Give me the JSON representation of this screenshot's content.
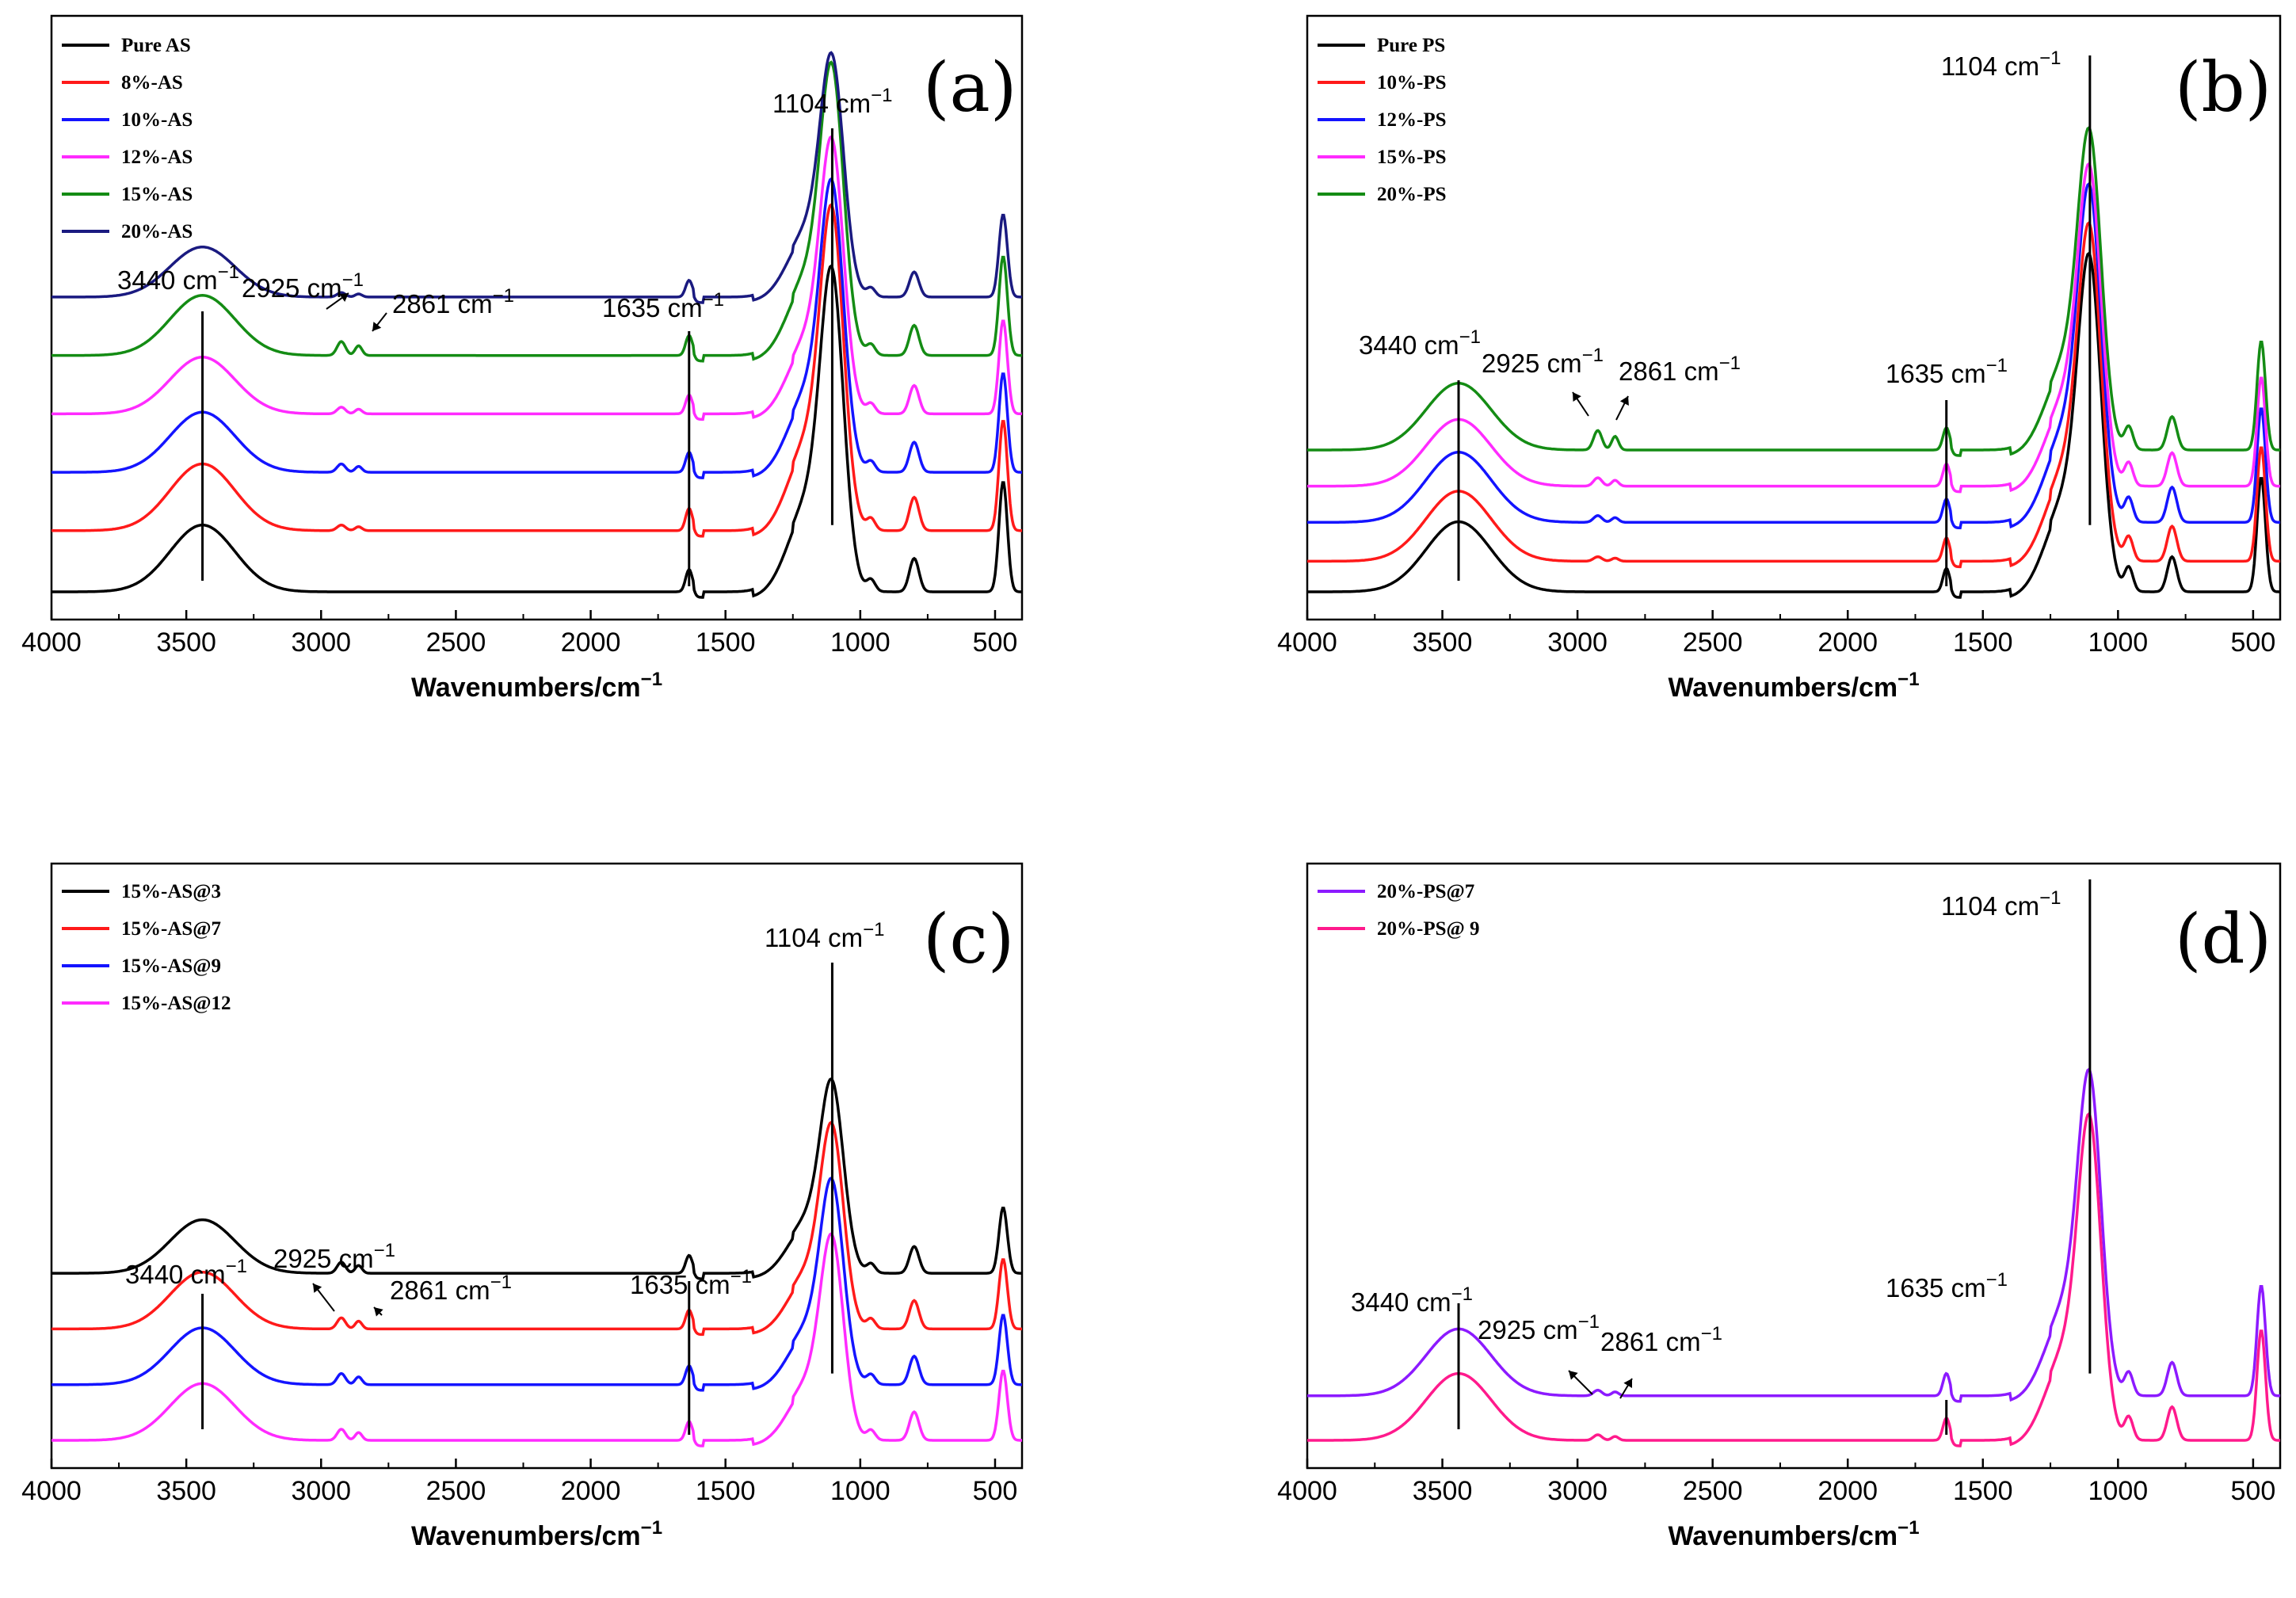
{
  "colors": {
    "black": "#000000",
    "red": "#ff1a1a",
    "blue": "#1414ff",
    "magenta": "#ff2bff",
    "green": "#148c14",
    "navy": "#1a1a80",
    "purple": "#8c1aff",
    "pink": "#ff1a8c"
  },
  "chart_data": [
    {
      "type": "line",
      "panel_label": "(a)",
      "xlabel": "Wavenumbers/cm",
      "xlabel_sup": "−1",
      "xlim": [
        4000,
        400
      ],
      "xticks": [
        4000,
        3500,
        3000,
        2500,
        2000,
        1500,
        1000,
        500
      ],
      "ylim": [
        0,
        100
      ],
      "series": [
        {
          "name": "Pure AS",
          "color": "#000000",
          "offset": 0,
          "scale": 1.0,
          "hcpk": 0.0
        },
        {
          "name": "8%-AS",
          "color": "#ff1a1a",
          "offset": 11,
          "scale": 1.0,
          "hcpk": 1.0
        },
        {
          "name": "10%-AS",
          "color": "#1414ff",
          "offset": 21.5,
          "scale": 0.9,
          "hcpk": 1.5
        },
        {
          "name": "12%-AS",
          "color": "#ff2bff",
          "offset": 32,
          "scale": 0.85,
          "hcpk": 1.2
        },
        {
          "name": "15%-AS",
          "color": "#148c14",
          "offset": 42.5,
          "scale": 0.9,
          "hcpk": 2.5
        },
        {
          "name": "20%-AS",
          "color": "#1a1a80",
          "offset": 53,
          "scale": 0.75,
          "hcpk": 0.8
        }
      ],
      "annotations": [
        {
          "label": "1104 cm",
          "sup": "−1"
        },
        {
          "label": "3440 cm",
          "sup": "−1"
        },
        {
          "label": "2925 cm",
          "sup": "−1"
        },
        {
          "label": "2861 cm",
          "sup": "−1"
        },
        {
          "label": "1635 cm",
          "sup": "−1"
        }
      ]
    },
    {
      "type": "line",
      "panel_label": "(b)",
      "xlabel": "Wavenumbers/cm",
      "xlabel_sup": "−1",
      "xlim": [
        4000,
        400
      ],
      "xticks": [
        4000,
        3500,
        3000,
        2500,
        2000,
        1500,
        1000,
        500
      ],
      "ylim": [
        0,
        100
      ],
      "series": [
        {
          "name": "Pure PS",
          "color": "#000000",
          "offset": 0,
          "scale": 1.05,
          "hcpk": 0.0
        },
        {
          "name": "10%-PS",
          "color": "#ff1a1a",
          "offset": 5.5,
          "scale": 1.05,
          "hcpk": 0.8
        },
        {
          "name": "12%-PS",
          "color": "#1414ff",
          "offset": 12.5,
          "scale": 1.05,
          "hcpk": 1.2
        },
        {
          "name": "15%-PS",
          "color": "#ff2bff",
          "offset": 19,
          "scale": 1.0,
          "hcpk": 1.5
        },
        {
          "name": "20%-PS",
          "color": "#148c14",
          "offset": 25.5,
          "scale": 1.0,
          "hcpk": 3.5
        }
      ],
      "annotations": [
        {
          "label": "1104 cm",
          "sup": "−1"
        },
        {
          "label": "3440 cm",
          "sup": "−1"
        },
        {
          "label": "2925 cm",
          "sup": "−1"
        },
        {
          "label": "2861 cm",
          "sup": "−1"
        },
        {
          "label": "1635 cm",
          "sup": "−1"
        }
      ]
    },
    {
      "type": "line",
      "panel_label": "(c)",
      "xlabel": "Wavenumbers/cm",
      "xlabel_sup": "−1",
      "xlim": [
        4000,
        400
      ],
      "xticks": [
        4000,
        3500,
        3000,
        2500,
        2000,
        1500,
        1000,
        500
      ],
      "ylim": [
        0,
        100
      ],
      "series": [
        {
          "name": "15%-AS@3",
          "color": "#000000",
          "offset": 30,
          "scale": 0.8,
          "hcpk": 2.0
        },
        {
          "name": "15%-AS@7",
          "color": "#ff1a1a",
          "offset": 20,
          "scale": 0.85,
          "hcpk": 2.0
        },
        {
          "name": "15%-AS@9",
          "color": "#1414ff",
          "offset": 10,
          "scale": 0.85,
          "hcpk": 2.0
        },
        {
          "name": "15%-AS@12",
          "color": "#ff2bff",
          "offset": 0,
          "scale": 0.85,
          "hcpk": 2.0
        }
      ],
      "annotations": [
        {
          "label": "1104 cm",
          "sup": "−1"
        },
        {
          "label": "3440 cm",
          "sup": "−1"
        },
        {
          "label": "2925 cm",
          "sup": "−1"
        },
        {
          "label": "2861 cm",
          "sup": "−1"
        },
        {
          "label": "1635 cm",
          "sup": "−1"
        }
      ]
    },
    {
      "type": "line",
      "panel_label": "(d)",
      "xlabel": "Wavenumbers/cm",
      "xlabel_sup": "−1",
      "xlim": [
        4000,
        400
      ],
      "xticks": [
        4000,
        3500,
        3000,
        2500,
        2000,
        1500,
        1000,
        500
      ],
      "ylim": [
        0,
        100
      ],
      "series": [
        {
          "name": "20%-PS@7",
          "color": "#8c1aff",
          "offset": 8,
          "scale": 1.0,
          "hcpk": 1.0
        },
        {
          "name": "20%-PS@ 9",
          "color": "#ff1a8c",
          "offset": 0,
          "scale": 1.0,
          "hcpk": 1.0
        }
      ],
      "annotations": [
        {
          "label": "1104 cm",
          "sup": "−1"
        },
        {
          "label": "3440 cm",
          "sup": "−1"
        },
        {
          "label": "2925 cm",
          "sup": "−1"
        },
        {
          "label": "2861 cm",
          "sup": "−1"
        },
        {
          "label": "1635 cm",
          "sup": "−1"
        }
      ]
    }
  ]
}
